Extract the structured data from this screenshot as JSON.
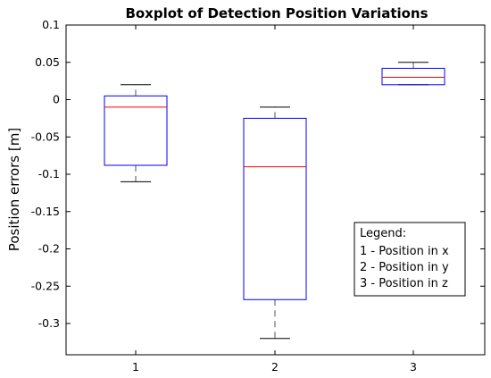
{
  "chart_data": {
    "type": "boxplot",
    "title": "Boxplot of Detection Position Variations",
    "xlabel": "",
    "ylabel": "Position errors [m]",
    "ylim": [
      -0.34,
      0.1
    ],
    "yticks": [
      "0.1",
      "0.05",
      "0",
      "-0.05",
      "-0.1",
      "-0.15",
      "-0.2",
      "-0.25",
      "-0.3"
    ],
    "ytick_values": [
      0.1,
      0.05,
      0,
      -0.05,
      -0.1,
      -0.15,
      -0.2,
      -0.25,
      -0.3
    ],
    "categories": [
      "1",
      "2",
      "3"
    ],
    "boxes": [
      {
        "category": "1",
        "whisker_low": -0.11,
        "q1": -0.088,
        "median": -0.01,
        "q3": 0.005,
        "whisker_high": 0.02
      },
      {
        "category": "2",
        "whisker_low": -0.32,
        "q1": -0.268,
        "median": -0.09,
        "q3": -0.025,
        "whisker_high": -0.01
      },
      {
        "category": "3",
        "whisker_low": 0.02,
        "q1": 0.02,
        "median": 0.03,
        "q3": 0.042,
        "whisker_high": 0.05
      }
    ],
    "grid": false,
    "legend": {
      "placement": "lower-right",
      "title": "Legend:",
      "entries": [
        "1 - Position in x",
        "2 - Position in y",
        "3 - Position in z"
      ]
    },
    "colors": {
      "box": "#0000ff",
      "median": "#ff0000",
      "whisker": "#000000"
    }
  }
}
